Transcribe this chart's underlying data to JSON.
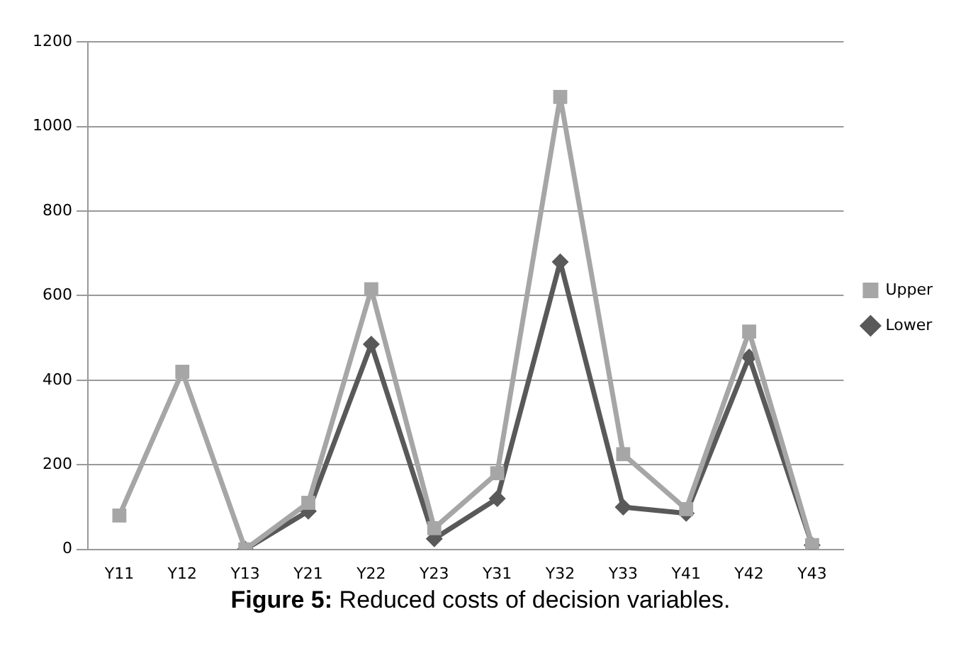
{
  "chart_data": {
    "type": "line",
    "categories": [
      "Y11",
      "Y12",
      "Y13",
      "Y21",
      "Y22",
      "Y23",
      "Y31",
      "Y32",
      "Y33",
      "Y41",
      "Y42",
      "Y43"
    ],
    "series": [
      {
        "name": "Upper",
        "color": "#a6a6a6",
        "marker": "square",
        "values": [
          80,
          420,
          0,
          110,
          615,
          50,
          180,
          1070,
          225,
          95,
          515,
          10
        ]
      },
      {
        "name": "Lower",
        "color": "#595959",
        "marker": "diamond",
        "values": [
          null,
          null,
          0,
          90,
          485,
          25,
          120,
          680,
          100,
          85,
          455,
          10
        ]
      }
    ],
    "ylim": [
      0,
      1200
    ],
    "yticks": [
      0,
      200,
      400,
      600,
      800,
      1000,
      1200
    ],
    "grid": "y",
    "legend": "right",
    "annotations": [
      "Figure 5: Reduced costs of decision variables."
    ]
  }
}
